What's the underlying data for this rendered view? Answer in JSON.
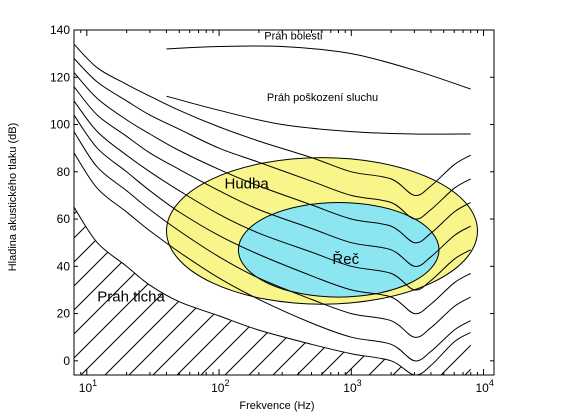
{
  "chart_data": {
    "type": "line",
    "xlabel": "Frekvence (Hz)",
    "ylabel": "Hladina akustického tlaku (dB)",
    "xscale": "log",
    "xlim": [
      8,
      12000
    ],
    "ylim": [
      -6,
      140
    ],
    "grid": false,
    "y_ticks": [
      {
        "value": 0,
        "label": "0"
      },
      {
        "value": 20,
        "label": "20"
      },
      {
        "value": 40,
        "label": "40"
      },
      {
        "value": 60,
        "label": "60"
      },
      {
        "value": 80,
        "label": "80"
      },
      {
        "value": 100,
        "label": "100"
      },
      {
        "value": 120,
        "label": "120"
      },
      {
        "value": 140,
        "label": "140"
      }
    ],
    "x_ticks": [
      {
        "value": 10,
        "base": "10",
        "exp": "1"
      },
      {
        "value": 100,
        "base": "10",
        "exp": "2"
      },
      {
        "value": 1000,
        "base": "10",
        "exp": "3"
      },
      {
        "value": 10000,
        "base": "10",
        "exp": "4"
      }
    ],
    "regions": [
      {
        "name": "Hudba",
        "label": "Hudba",
        "color": "#f8f58a",
        "center": [
          750,
          55
        ],
        "x_range": [
          40,
          9000
        ],
        "y_halfwidth": 31,
        "label_at": [
          110,
          73
        ]
      },
      {
        "name": "Řeč",
        "label": "Řeč",
        "color": "#8be6f2",
        "center": [
          800,
          47
        ],
        "x_range": [
          140,
          4600
        ],
        "y_halfwidth": 20,
        "label_at": [
          720,
          41
        ]
      },
      {
        "name": "Práh ticha",
        "label": "Práh ticha",
        "hatched": true,
        "label_at": [
          12,
          25
        ]
      }
    ],
    "thresholds": [
      {
        "label": "Práh bolesti",
        "label_at": [
          220,
          136
        ],
        "x": [
          40,
          100,
          300,
          1000,
          3000,
          8000
        ],
        "y": [
          132,
          133,
          133,
          130,
          123,
          115
        ]
      },
      {
        "label": "Práh poškození sluchu",
        "label_at": [
          230,
          110
        ],
        "x": [
          40,
          100,
          300,
          1000,
          3000,
          8000
        ],
        "y": [
          112,
          106,
          100,
          97,
          96,
          96
        ]
      }
    ],
    "threshold_of_hearing": {
      "x": [
        8,
        12,
        20,
        30,
        50,
        100,
        200,
        500,
        1000,
        2000,
        3000,
        4000,
        6000,
        8000
      ],
      "y": [
        65,
        50,
        40,
        32,
        25,
        19,
        13,
        7,
        3,
        0,
        -6,
        -2,
        8,
        12
      ]
    },
    "equal_loudness_contours": [
      {
        "x": [
          8,
          12,
          20,
          30,
          50,
          100,
          200,
          500,
          1000,
          2000,
          3000,
          4000,
          6000,
          8000
        ],
        "y": [
          134,
          124,
          117,
          112,
          106,
          99,
          93,
          86,
          80,
          77,
          70,
          74,
          83,
          87
        ]
      },
      {
        "x": [
          8,
          12,
          20,
          30,
          50,
          100,
          200,
          500,
          1000,
          2000,
          3000,
          4000,
          6000,
          8000
        ],
        "y": [
          128,
          118,
          110,
          104,
          98,
          90,
          84,
          76,
          70,
          67,
          60,
          64,
          73,
          77
        ]
      },
      {
        "x": [
          8,
          12,
          20,
          30,
          50,
          100,
          200,
          500,
          1000,
          2000,
          3000,
          4000,
          6000,
          8000
        ],
        "y": [
          122,
          111,
          102,
          96,
          89,
          81,
          74,
          66,
          60,
          57,
          50,
          54,
          63,
          67
        ]
      },
      {
        "x": [
          8,
          12,
          20,
          30,
          50,
          100,
          200,
          500,
          1000,
          2000,
          3000,
          4000,
          6000,
          8000
        ],
        "y": [
          116,
          104,
          95,
          88,
          81,
          72,
          64,
          56,
          50,
          47,
          40,
          44,
          53,
          57
        ]
      },
      {
        "x": [
          8,
          12,
          20,
          30,
          50,
          100,
          200,
          500,
          1000,
          2000,
          3000,
          4000,
          6000,
          8000
        ],
        "y": [
          110,
          97,
          87,
          80,
          72,
          62,
          54,
          46,
          40,
          37,
          30,
          34,
          43,
          47
        ]
      },
      {
        "x": [
          8,
          12,
          20,
          30,
          50,
          100,
          200,
          500,
          1000,
          2000,
          3000,
          4000,
          6000,
          8000
        ],
        "y": [
          104,
          90,
          80,
          72,
          63,
          53,
          45,
          36,
          30,
          27,
          20,
          24,
          33,
          37
        ]
      },
      {
        "x": [
          8,
          12,
          20,
          30,
          50,
          100,
          200,
          500,
          1000,
          2000,
          3000,
          4000,
          6000,
          8000
        ],
        "y": [
          97,
          82,
          72,
          64,
          55,
          44,
          35,
          26,
          20,
          17,
          10,
          14,
          23,
          27
        ]
      },
      {
        "x": [
          8,
          12,
          20,
          30,
          50,
          100,
          200,
          500,
          1000,
          2000,
          3000,
          4000,
          6000,
          8000
        ],
        "y": [
          88,
          73,
          63,
          55,
          46,
          35,
          26,
          16,
          10,
          7,
          0,
          4,
          13,
          17
        ]
      }
    ]
  }
}
